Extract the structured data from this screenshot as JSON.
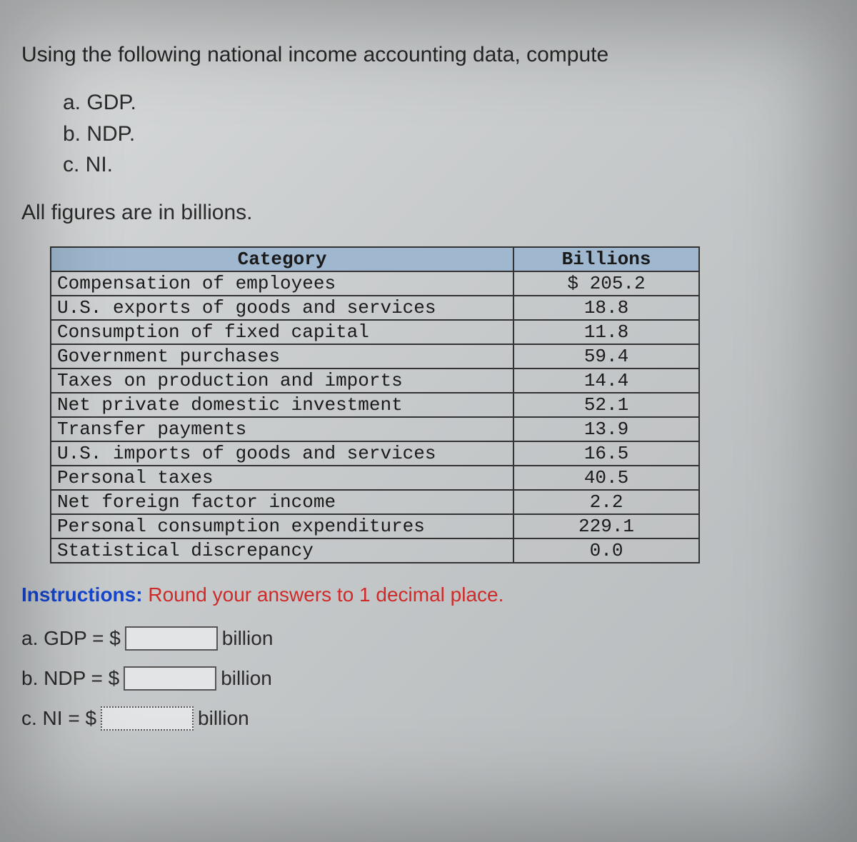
{
  "prompt": "Using the following national income accounting data, compute",
  "sublist": {
    "a": "a. GDP.",
    "b": "b. NDP.",
    "c": "c. NI."
  },
  "note": "All figures are in billions.",
  "table": {
    "type": "table",
    "headers": {
      "category": "Category",
      "value": "Billions"
    },
    "header_bg": "#9fb8cf",
    "border_color": "#333333",
    "font_family": "Courier New",
    "columns": [
      "Category",
      "Billions"
    ],
    "rows": [
      {
        "category": "Compensation of employees",
        "value": "$ 205.2"
      },
      {
        "category": "U.S. exports of goods and services",
        "value": "18.8"
      },
      {
        "category": "Consumption of fixed capital",
        "value": "11.8"
      },
      {
        "category": "Government purchases",
        "value": "59.4"
      },
      {
        "category": "Taxes on production and imports",
        "value": "14.4"
      },
      {
        "category": "Net private domestic investment",
        "value": "52.1"
      },
      {
        "category": "Transfer payments",
        "value": "13.9"
      },
      {
        "category": "U.S. imports of goods and services",
        "value": "16.5"
      },
      {
        "category": "Personal taxes",
        "value": "40.5"
      },
      {
        "category": "Net foreign factor income",
        "value": "2.2"
      },
      {
        "category": "Personal consumption expenditures",
        "value": "229.1"
      },
      {
        "category": "Statistical discrepancy",
        "value": "0.0"
      }
    ]
  },
  "instructions": {
    "label": "Instructions:",
    "text": " Round your answers to 1 decimal place."
  },
  "answers": {
    "a": {
      "label": "a. GDP = $",
      "unit": "billion",
      "value": ""
    },
    "b": {
      "label": "b. NDP = $",
      "unit": "billion",
      "value": ""
    },
    "c": {
      "label": "c. NI = $",
      "unit": "billion",
      "value": ""
    }
  },
  "colors": {
    "bg_gradient_start": "#d8dadb",
    "bg_gradient_end": "#b4b8ba",
    "text": "#2b2b2b",
    "instruction_label": "#1646cf",
    "instruction_text": "#cf2a2a"
  }
}
